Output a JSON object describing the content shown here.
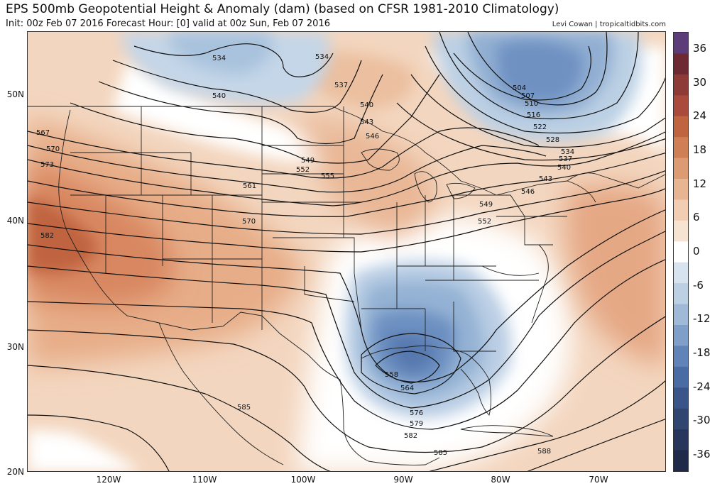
{
  "title": "EPS 500mb Geopotential Height & Anomaly (dam) (based on CFSR 1981-2010 Climatology)",
  "subtitle": "Init: 00z Feb 07 2016   Forecast Hour: [0]   valid at 00z Sun, Feb 07 2016",
  "credit": "Levi Cowan | tropicaltidbits.com",
  "latitude_labels": [
    "50N",
    "40N",
    "30N",
    "20N"
  ],
  "longitude_labels": [
    "120W",
    "110W",
    "100W",
    "90W",
    "80W",
    "70W"
  ],
  "colorbar": {
    "ticks": [
      "36",
      "30",
      "24",
      "18",
      "12",
      "6",
      "0",
      "-6",
      "-12",
      "-18",
      "-24",
      "-30",
      "-36"
    ],
    "colors": [
      "#5c3d7a",
      "#6e2a32",
      "#8e3a36",
      "#a94a3c",
      "#c0643f",
      "#d07f55",
      "#dd9b74",
      "#e8b592",
      "#f1ceb3",
      "#f7e3d2",
      "#ffffff",
      "#d7e3ef",
      "#bccfe3",
      "#9fb9d7",
      "#7f9fc8",
      "#6083b8",
      "#4a6ba4",
      "#3a5688",
      "#304670",
      "#27365a",
      "#1f2a4a"
    ]
  },
  "contour_labels": [
    "534",
    "534",
    "537",
    "540",
    "540",
    "543",
    "546",
    "549",
    "552",
    "555",
    "561",
    "570",
    "567",
    "570",
    "573",
    "582",
    "504",
    "507",
    "510",
    "516",
    "522",
    "528",
    "534",
    "537",
    "540",
    "543",
    "546",
    "549",
    "552",
    "558",
    "564",
    "576",
    "579",
    "582",
    "585",
    "585",
    "588"
  ],
  "colors": {
    "warm_strong": "#c0643f",
    "warm_mid": "#dd9b74",
    "warm_light": "#f1ceb3",
    "cool_light": "#bccfe3",
    "cool_mid": "#7f9fc8",
    "cool_strong": "#4a6ba4"
  }
}
